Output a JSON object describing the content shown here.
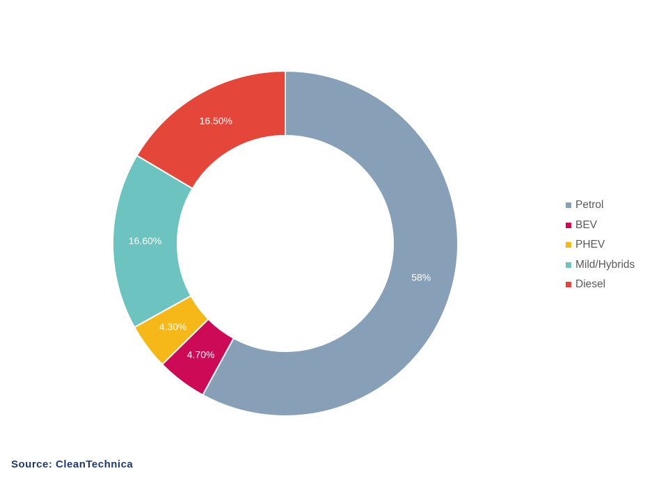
{
  "chart_data": {
    "type": "pie",
    "variant": "donut",
    "legend_position": "right",
    "slices": [
      {
        "name": "Petrol",
        "value": 58,
        "label": "58%",
        "color": "#87a0b8"
      },
      {
        "name": "BEV",
        "value": 4.7,
        "label": "4.70%",
        "color": "#cc0a55"
      },
      {
        "name": "PHEV",
        "value": 4.3,
        "label": "4.30%",
        "color": "#f5b818"
      },
      {
        "name": "Mild/Hybrids",
        "value": 16.6,
        "label": "16.60%",
        "color": "#6cc3bf"
      },
      {
        "name": "Diesel",
        "value": 16.5,
        "label": "16.50%",
        "color": "#e4473a"
      }
    ]
  },
  "source": "Source: CleanTechnica"
}
